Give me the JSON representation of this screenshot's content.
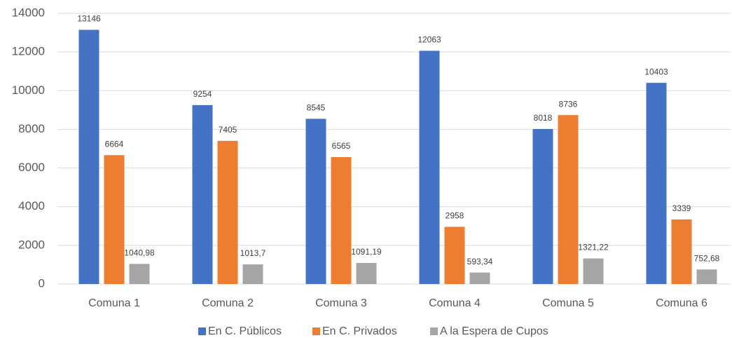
{
  "chart_data": {
    "type": "bar",
    "categories": [
      "Comuna 1",
      "Comuna 2",
      "Comuna 3",
      "Comuna 4",
      "Comuna 5",
      "Comuna 6"
    ],
    "series": [
      {
        "name": "En C. Públicos",
        "color": "#4472c4",
        "values": [
          13146,
          9254,
          8545,
          12063,
          8018,
          10403
        ]
      },
      {
        "name": "En C. Privados",
        "color": "#ed7d31",
        "values": [
          6664,
          7405,
          6565,
          2958,
          8736,
          3339
        ]
      },
      {
        "name": "A la Espera de Cupos",
        "color": "#a5a5a5",
        "values": [
          1040.98,
          1013.7,
          1091.19,
          593.34,
          1321.22,
          752.68
        ],
        "value_labels": [
          "1040,98",
          "1013,7",
          "1091,19",
          "593,34",
          "1321,22",
          "752,68"
        ]
      }
    ],
    "ylim": [
      0,
      14000
    ],
    "yticks": [
      0,
      2000,
      4000,
      6000,
      8000,
      10000,
      12000,
      14000
    ],
    "grid": true,
    "legend": "bottom"
  }
}
